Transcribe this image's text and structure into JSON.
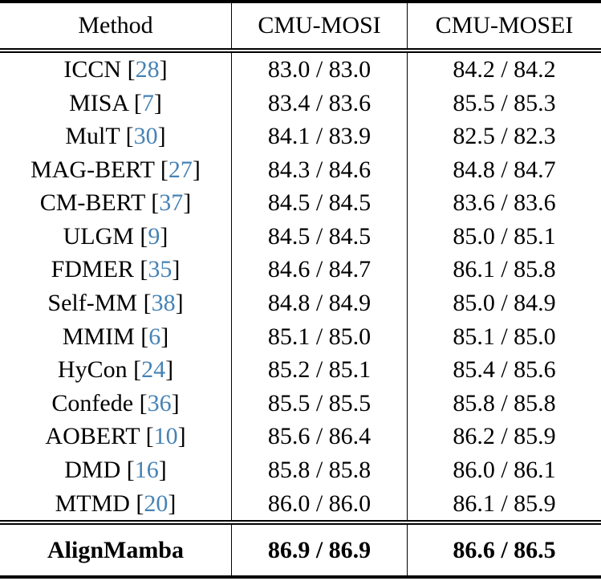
{
  "table": {
    "columns": [
      "Method",
      "CMU-MOSI",
      "CMU-MOSEI"
    ],
    "rows": [
      {
        "method": "ICCN",
        "cite": "28",
        "mosi": "83.0 / 83.0",
        "mosei": "84.2 / 84.2"
      },
      {
        "method": "MISA",
        "cite": "7",
        "mosi": "83.4 / 83.6",
        "mosei": "85.5 / 85.3"
      },
      {
        "method": "MulT",
        "cite": "30",
        "mosi": "84.1 / 83.9",
        "mosei": "82.5 / 82.3"
      },
      {
        "method": "MAG-BERT",
        "cite": "27",
        "mosi": "84.3 / 84.6",
        "mosei": "84.8 / 84.7"
      },
      {
        "method": "CM-BERT",
        "cite": "37",
        "mosi": "84.5 / 84.5",
        "mosei": "83.6 / 83.6"
      },
      {
        "method": "ULGM",
        "cite": "9",
        "mosi": "84.5 / 84.5",
        "mosei": "85.0 / 85.1"
      },
      {
        "method": "FDMER",
        "cite": "35",
        "mosi": "84.6 / 84.7",
        "mosei": "86.1 / 85.8"
      },
      {
        "method": "Self-MM",
        "cite": "38",
        "mosi": "84.8 / 84.9",
        "mosei": "85.0 / 84.9"
      },
      {
        "method": "MMIM",
        "cite": "6",
        "mosi": "85.1 / 85.0",
        "mosei": "85.1 / 85.0"
      },
      {
        "method": "HyCon",
        "cite": "24",
        "mosi": "85.2 / 85.1",
        "mosei": "85.4 / 85.6"
      },
      {
        "method": "Confede",
        "cite": "36",
        "mosi": "85.5 / 85.5",
        "mosei": "85.8 / 85.8"
      },
      {
        "method": "AOBERT",
        "cite": "10",
        "mosi": "85.6 / 86.4",
        "mosei": "86.2 / 85.9"
      },
      {
        "method": "DMD",
        "cite": "16",
        "mosi": "85.8 / 85.8",
        "mosei": "86.0 / 86.1"
      },
      {
        "method": "MTMD",
        "cite": "20",
        "mosi": "86.0 / 86.0",
        "mosei": "86.1 / 85.9"
      }
    ],
    "final_row": {
      "method": "AlignMamba",
      "mosi": "86.9 / 86.9",
      "mosei": "86.6 / 86.5"
    },
    "citation_open_bracket": "[",
    "citation_close_bracket": "]"
  },
  "colors": {
    "citation_link": "#4682b4",
    "text": "#000000",
    "background": "#ffffff",
    "rule": "#000000"
  }
}
